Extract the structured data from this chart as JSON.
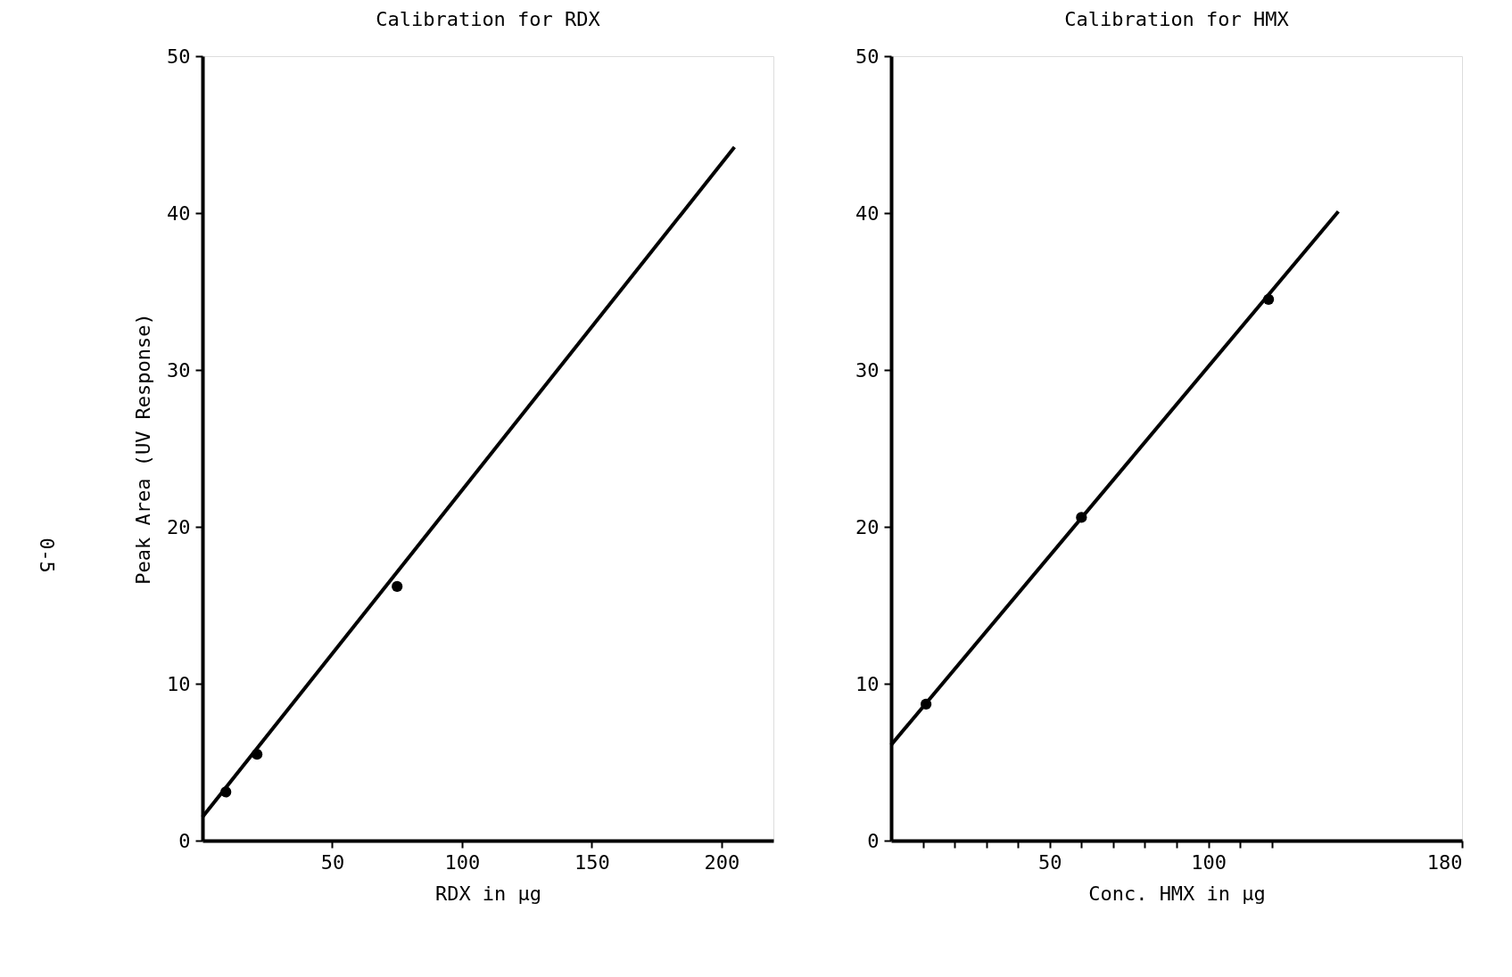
{
  "chart_data": [
    {
      "type": "scatter",
      "title": "Calibration for RDX",
      "xlabel": "RDX in µg",
      "ylabel": "Peak Area (UV Response)",
      "xlim": [
        0,
        220
      ],
      "ylim": [
        0,
        50
      ],
      "xticks": [
        50,
        100,
        150,
        200
      ],
      "yticks": [
        0,
        10,
        20,
        30,
        40,
        50
      ],
      "grid": false,
      "marker": "circle",
      "annotations": [
        "0-5"
      ],
      "series": [
        {
          "color": "#000000",
          "x": [
            9,
            21,
            75
          ],
          "values": [
            3.1,
            5.5,
            16.2
          ]
        },
        {
          "type": "line",
          "color": "#000000",
          "line_style": "solid",
          "marker": "none",
          "x": [
            0,
            205
          ],
          "values": [
            1.5,
            44.2
          ]
        }
      ]
    },
    {
      "type": "scatter",
      "title": "Calibration for HMX",
      "xlabel": "Conc. HMX in µg",
      "xlim": [
        0,
        180
      ],
      "ylim": [
        0,
        50
      ],
      "xticks": [
        {
          "value": 10,
          "label": null
        },
        {
          "value": 20,
          "label": null
        },
        {
          "value": 30,
          "label": null
        },
        {
          "value": 40,
          "label": null
        },
        50,
        {
          "value": 60,
          "label": null
        },
        {
          "value": 70,
          "label": null
        },
        {
          "value": 80,
          "label": null
        },
        {
          "value": 90,
          "label": null
        },
        100,
        {
          "value": 110,
          "label": null
        },
        {
          "value": 120,
          "label": null
        },
        180
      ],
      "yticks": [
        0,
        10,
        20,
        30,
        40,
        50
      ],
      "grid": false,
      "marker": "circle",
      "series": [
        {
          "color": "#000000",
          "x": [
            11,
            60,
            119
          ],
          "values": [
            8.7,
            20.6,
            34.5
          ]
        },
        {
          "type": "line",
          "color": "#000000",
          "line_style": "solid",
          "marker": "none",
          "x": [
            0,
            141
          ],
          "values": [
            6.1,
            40.1
          ]
        }
      ]
    }
  ]
}
